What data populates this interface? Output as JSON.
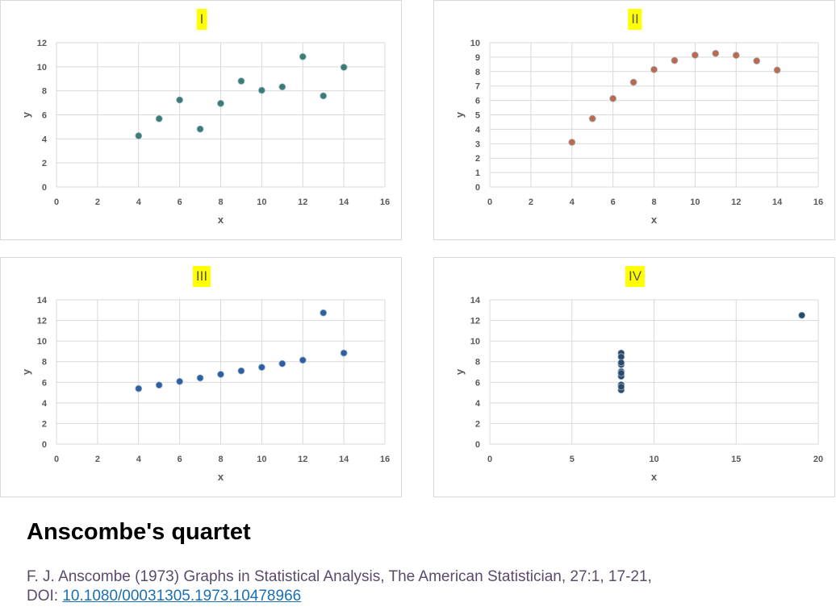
{
  "chart_data": [
    {
      "type": "scatter",
      "title": "I",
      "xlabel": "x",
      "ylabel": "y",
      "xlim": [
        0,
        16
      ],
      "ylim": [
        0,
        12
      ],
      "xticks": [
        0,
        2,
        4,
        6,
        8,
        10,
        12,
        14,
        16
      ],
      "yticks": [
        0,
        2,
        4,
        6,
        8,
        10,
        12
      ],
      "grid": true,
      "marker_color": "#3a7d74",
      "points": [
        [
          4,
          4.26
        ],
        [
          5,
          5.68
        ],
        [
          6,
          7.24
        ],
        [
          7,
          4.82
        ],
        [
          8,
          6.95
        ],
        [
          9,
          8.81
        ],
        [
          10,
          8.04
        ],
        [
          11,
          8.33
        ],
        [
          12,
          10.84
        ],
        [
          13,
          7.58
        ],
        [
          14,
          9.96
        ]
      ]
    },
    {
      "type": "scatter",
      "title": "II",
      "xlabel": "x",
      "ylabel": "y",
      "xlim": [
        0,
        16
      ],
      "ylim": [
        0,
        10
      ],
      "xticks": [
        0,
        2,
        4,
        6,
        8,
        10,
        12,
        14,
        16
      ],
      "yticks": [
        0,
        1,
        2,
        3,
        4,
        5,
        6,
        7,
        8,
        9,
        10
      ],
      "grid": true,
      "marker_color": "#c0694a",
      "points": [
        [
          4,
          3.1
        ],
        [
          5,
          4.74
        ],
        [
          6,
          6.13
        ],
        [
          7,
          7.26
        ],
        [
          8,
          8.14
        ],
        [
          9,
          8.77
        ],
        [
          10,
          9.14
        ],
        [
          11,
          9.26
        ],
        [
          12,
          9.13
        ],
        [
          13,
          8.74
        ],
        [
          14,
          8.1
        ]
      ]
    },
    {
      "type": "scatter",
      "title": "III",
      "xlabel": "x",
      "ylabel": "y",
      "xlim": [
        0,
        16
      ],
      "ylim": [
        0,
        14
      ],
      "xticks": [
        0,
        2,
        4,
        6,
        8,
        10,
        12,
        14,
        16
      ],
      "yticks": [
        0,
        2,
        4,
        6,
        8,
        10,
        12,
        14
      ],
      "grid": true,
      "marker_color": "#2e5fa3",
      "points": [
        [
          4,
          5.39
        ],
        [
          5,
          5.73
        ],
        [
          6,
          6.08
        ],
        [
          7,
          6.42
        ],
        [
          8,
          6.77
        ],
        [
          9,
          7.11
        ],
        [
          10,
          7.46
        ],
        [
          11,
          7.81
        ],
        [
          12,
          8.15
        ],
        [
          13,
          12.74
        ],
        [
          14,
          8.84
        ]
      ]
    },
    {
      "type": "scatter",
      "title": "IV",
      "xlabel": "x",
      "ylabel": "y",
      "xlim": [
        0,
        20
      ],
      "ylim": [
        0,
        14
      ],
      "xticks": [
        0,
        5,
        10,
        15,
        20
      ],
      "yticks": [
        0,
        2,
        4,
        6,
        8,
        10,
        12,
        14
      ],
      "grid": true,
      "marker_color": "#2b4a6b",
      "points": [
        [
          8,
          6.58
        ],
        [
          8,
          5.76
        ],
        [
          8,
          7.71
        ],
        [
          8,
          8.84
        ],
        [
          8,
          8.47
        ],
        [
          8,
          7.04
        ],
        [
          8,
          5.25
        ],
        [
          19,
          12.5
        ],
        [
          8,
          5.56
        ],
        [
          8,
          7.91
        ],
        [
          8,
          6.89
        ]
      ]
    }
  ],
  "page": {
    "title": "Anscombe's quartet",
    "citation": "F. J. Anscombe (1973) Graphs in Statistical Analysis, The American Statistician, 27:1, 17-21,",
    "doi_prefix": "DOI: ",
    "doi_link": "10.1080/00031305.1973.10478966"
  }
}
